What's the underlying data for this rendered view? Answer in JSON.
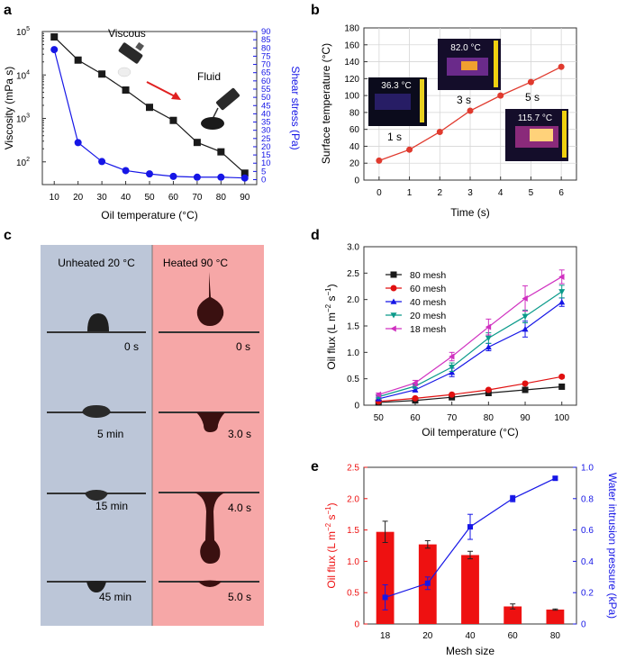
{
  "figure": {
    "panels": [
      "a",
      "b",
      "c",
      "d",
      "e"
    ],
    "colors": {
      "black": "#1a1a1a",
      "blue": "#1616e6",
      "red": "#e03a2e",
      "bar": "#ee1111",
      "gridline": "#cccccc",
      "cool_panel": "#bcc6d8",
      "hot_panel": "#f6a7a7"
    }
  },
  "chart_data": [
    {
      "panel": "a",
      "type": "line",
      "xlabel": "Oil temperature (°C)",
      "ylabel": "Viscosity (mPa s)",
      "y2label": "Shear stress (Pa)",
      "x": [
        10,
        20,
        30,
        40,
        50,
        60,
        70,
        80,
        90
      ],
      "xticks": [
        "10",
        "20",
        "30",
        "40",
        "50",
        "60",
        "70",
        "80",
        "90"
      ],
      "yscale": "log",
      "ylim": [
        30,
        100000
      ],
      "yticks": [
        100,
        1000,
        10000,
        100000
      ],
      "yticklabels": [
        [
          "10",
          "2"
        ],
        [
          "10",
          "3"
        ],
        [
          "10",
          "4"
        ],
        [
          "10",
          "5"
        ]
      ],
      "y2lim": [
        -3,
        90
      ],
      "y2ticks": [
        "0",
        "5",
        "10",
        "15",
        "20",
        "25",
        "30",
        "35",
        "40",
        "45",
        "50",
        "55",
        "60",
        "65",
        "70",
        "75",
        "80",
        "85",
        "90"
      ],
      "series": [
        {
          "name": "Viscosity",
          "axis": "left",
          "marker": "square",
          "color": "#1a1a1a",
          "values": [
            75000,
            22000,
            10500,
            4500,
            1800,
            900,
            280,
            170,
            55
          ]
        },
        {
          "name": "Shear stress",
          "axis": "right",
          "marker": "circle",
          "color": "#1616e6",
          "values": [
            79,
            22.5,
            11,
            5.5,
            3.5,
            2,
            1.5,
            1.5,
            1
          ]
        }
      ],
      "annotations": [
        "Viscous",
        "Fluid"
      ]
    },
    {
      "panel": "b",
      "type": "line",
      "xlabel": "Time (s)",
      "ylabel": "Surface temperature (°C)",
      "x": [
        0,
        1,
        2,
        3,
        4,
        5,
        6
      ],
      "xticks": [
        "0",
        "1",
        "2",
        "3",
        "4",
        "5",
        "6"
      ],
      "ylim": [
        0,
        180
      ],
      "yticks": [
        "0",
        "20",
        "40",
        "60",
        "80",
        "100",
        "120",
        "140",
        "160",
        "180"
      ],
      "series": [
        {
          "name": "Surface temperature",
          "color": "#e03a2e",
          "marker": "circle",
          "values": [
            23,
            36,
            57,
            82,
            100,
            116,
            134
          ]
        }
      ],
      "thermal_images": [
        {
          "time_label": "1 s",
          "temp_label": "36.3 °C"
        },
        {
          "time_label": "3 s",
          "temp_label": "82.0 °C"
        },
        {
          "time_label": "5 s",
          "temp_label": "115.7 °C"
        }
      ]
    },
    {
      "panel": "c",
      "type": "image-sequence",
      "columns": [
        {
          "title": "Unheated 20 °C",
          "frames": [
            "0 s",
            "5 min",
            "15 min",
            "45 min"
          ]
        },
        {
          "title": "Heated 90 °C",
          "frames": [
            "0 s",
            "3.0 s",
            "4.0 s",
            "5.0 s"
          ]
        }
      ]
    },
    {
      "panel": "d",
      "type": "line",
      "xlabel": "Oil temperature (°C)",
      "ylabel_main": "Oil flux (L m",
      "ylabel_exp1": "−2",
      "ylabel_mid": " s",
      "ylabel_exp2": "−1",
      "ylabel_end": ")",
      "x": [
        50,
        60,
        70,
        80,
        90,
        100
      ],
      "xticks": [
        "50",
        "60",
        "70",
        "80",
        "90",
        "100"
      ],
      "ylim": [
        0,
        3.0
      ],
      "yticks": [
        "0",
        "0.5",
        "1.0",
        "1.5",
        "2.0",
        "2.5",
        "3.0"
      ],
      "legend_position": "top-left",
      "series": [
        {
          "name": "80 mesh",
          "marker": "square",
          "color": "#1a1a1a",
          "values": [
            0.05,
            0.09,
            0.15,
            0.23,
            0.29,
            0.35
          ],
          "errors": [
            0.01,
            0.01,
            0.02,
            0.02,
            0.02,
            0.02
          ]
        },
        {
          "name": "60 mesh",
          "marker": "circle",
          "color": "#e01010",
          "values": [
            0.07,
            0.13,
            0.2,
            0.29,
            0.41,
            0.54
          ],
          "errors": [
            0.01,
            0.02,
            0.02,
            0.02,
            0.03,
            0.03
          ]
        },
        {
          "name": "40 mesh",
          "marker": "triangle-up",
          "color": "#1616e6",
          "values": [
            0.12,
            0.29,
            0.62,
            1.1,
            1.44,
            1.95
          ],
          "errors": [
            0.03,
            0.04,
            0.08,
            0.07,
            0.15,
            0.08
          ]
        },
        {
          "name": "20 mesh",
          "marker": "triangle-down",
          "color": "#0a9a8a",
          "values": [
            0.16,
            0.36,
            0.72,
            1.27,
            1.68,
            2.15
          ],
          "errors": [
            0.03,
            0.04,
            0.08,
            0.1,
            0.12,
            0.12
          ]
        },
        {
          "name": "18 mesh",
          "marker": "triangle-left",
          "color": "#d030c0",
          "values": [
            0.2,
            0.42,
            0.92,
            1.48,
            2.02,
            2.43
          ],
          "errors": [
            0.03,
            0.05,
            0.08,
            0.15,
            0.24,
            0.13
          ]
        }
      ]
    },
    {
      "panel": "e",
      "type": "bar",
      "xlabel": "Mesh size",
      "ylabel_main": "Oil flux (L m",
      "ylabel_exp1": "−2",
      "ylabel_mid": " s",
      "ylabel_exp2": "−1",
      "ylabel_end": ")",
      "y2label": "Water intrusion pressure (kPa)",
      "categories": [
        "18",
        "20",
        "40",
        "60",
        "80"
      ],
      "ylim": [
        0,
        2.5
      ],
      "yticks": [
        "0",
        "0.5",
        "1.0",
        "1.5",
        "2.0",
        "2.5"
      ],
      "y2lim": [
        0,
        1.0
      ],
      "y2ticks": [
        "0",
        "0.2",
        "0.4",
        "0.6",
        "0.8",
        "1.0"
      ],
      "bars": {
        "name": "Oil flux",
        "color": "#ee1111",
        "values": [
          1.47,
          1.27,
          1.1,
          0.28,
          0.23
        ],
        "errors": [
          0.17,
          0.06,
          0.06,
          0.04,
          0.01
        ]
      },
      "series": [
        {
          "name": "Water intrusion pressure",
          "axis": "right",
          "marker": "square",
          "color": "#1616e6",
          "values": [
            0.17,
            0.26,
            0.62,
            0.8,
            0.93
          ],
          "errors": [
            0.08,
            0.04,
            0.08,
            0.02,
            0.01
          ]
        }
      ]
    }
  ]
}
